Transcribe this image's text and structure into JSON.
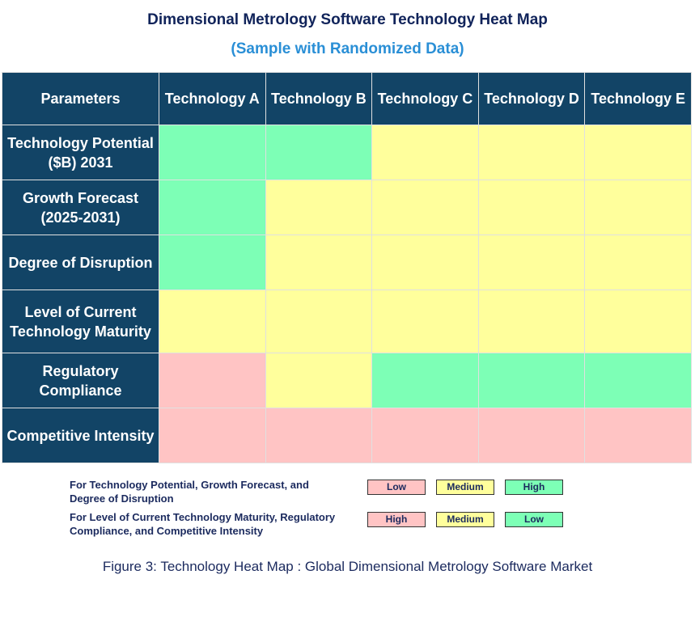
{
  "chart_data": {
    "type": "heatmap",
    "title": "Dimensional Metrology Software Technology Heat Map",
    "subtitle": "(Sample with Randomized Data)",
    "corner_label": "Parameters",
    "columns": [
      "Technology A",
      "Technology B",
      "Technology C",
      "Technology D",
      "Technology E"
    ],
    "rows": [
      "Technology Potential ($B) 2031",
      "Growth Forecast (2025-2031)",
      "Degree of Disruption",
      "Level of Current Technology Maturity",
      "Regulatory Compliance",
      "Competitive Intensity"
    ],
    "values": [
      [
        "green",
        "green",
        "yellow",
        "yellow",
        "yellow"
      ],
      [
        "green",
        "yellow",
        "yellow",
        "yellow",
        "yellow"
      ],
      [
        "green",
        "yellow",
        "yellow",
        "yellow",
        "yellow"
      ],
      [
        "yellow",
        "yellow",
        "yellow",
        "yellow",
        "yellow"
      ],
      [
        "red",
        "yellow",
        "green",
        "green",
        "green"
      ],
      [
        "red",
        "red",
        "red",
        "red",
        "red"
      ]
    ],
    "colors": {
      "green": "#7dffb6",
      "yellow": "#ffff9c",
      "red": "#ffc4c4",
      "header": "#124466"
    },
    "legend": [
      {
        "text": "For Technology Potential, Growth Forecast, and Degree of Disruption",
        "items": [
          {
            "label": "Low",
            "color": "red"
          },
          {
            "label": "Medium",
            "color": "yellow"
          },
          {
            "label": "High",
            "color": "green"
          }
        ]
      },
      {
        "text": "For Level of Current Technology Maturity, Regulatory Compliance, and Competitive Intensity",
        "items": [
          {
            "label": "High",
            "color": "red"
          },
          {
            "label": "Medium",
            "color": "yellow"
          },
          {
            "label": "Low",
            "color": "green"
          }
        ]
      }
    ],
    "caption": "Figure 3: Technology Heat Map :  Global Dimensional Metrology Software Market"
  }
}
